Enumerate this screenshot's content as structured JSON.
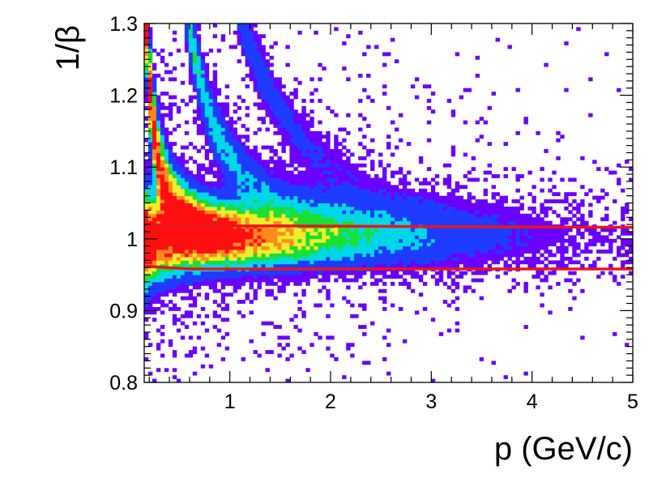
{
  "chart_data": {
    "type": "heatmap",
    "xlabel": "p (GeV/c)",
    "ylabel": "1/β",
    "xlim": [
      0.15,
      5.0
    ],
    "ylim": [
      0.8,
      1.3
    ],
    "xticks": [
      {
        "value": 1,
        "label": "1"
      },
      {
        "value": 2,
        "label": "2"
      },
      {
        "value": 3,
        "label": "3"
      },
      {
        "value": 4,
        "label": "4"
      },
      {
        "value": 5,
        "label": "5"
      }
    ],
    "yticks": [
      {
        "value": 0.8,
        "label": "0.8"
      },
      {
        "value": 0.9,
        "label": "0.9"
      },
      {
        "value": 1.0,
        "label": "1"
      },
      {
        "value": 1.1,
        "label": "1.1"
      },
      {
        "value": 1.2,
        "label": "1.2"
      },
      {
        "value": 1.3,
        "label": "1.3"
      }
    ],
    "grid": false,
    "colormap": [
      "#6a00ff",
      "#1e3cff",
      "#00d7e6",
      "#19e030",
      "#f2ec2a",
      "#ff8a1c",
      "#ff1010"
    ],
    "bands": [
      {
        "mass": 0.0,
        "relative_intensity": 1.0
      },
      {
        "mass": 0.14,
        "relative_intensity": 0.85
      },
      {
        "mass": 0.494,
        "relative_intensity": 0.45
      },
      {
        "mass": 0.938,
        "relative_intensity": 0.4
      },
      {
        "mass": 1.876,
        "relative_intensity": 0.07
      }
    ],
    "cut_lines": [
      {
        "x": [
          0.15,
          0.6,
          1.5,
          3.0,
          5.0
        ],
        "y": [
          1.02,
          1.018,
          1.018,
          1.017,
          1.016
        ],
        "color": "#e8161b"
      },
      {
        "x": [
          0.15,
          0.6,
          1.5,
          3.0,
          5.0
        ],
        "y": [
          0.962,
          0.958,
          0.958,
          0.958,
          0.958
        ],
        "color": "#e8161b"
      }
    ]
  }
}
